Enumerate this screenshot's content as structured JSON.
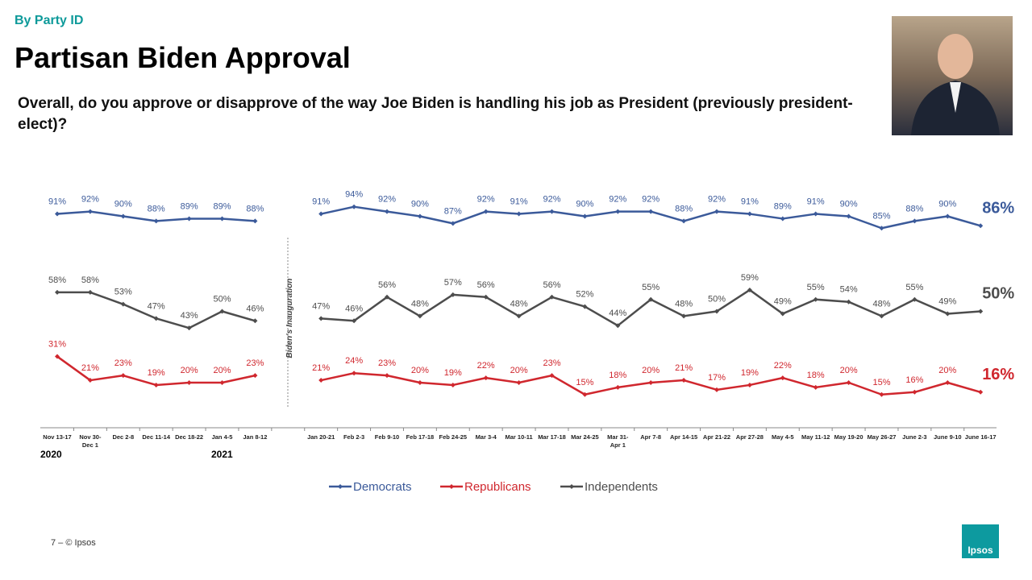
{
  "section": "By Party ID",
  "footer": "7 –  © Ipsos",
  "logo": "Ipsos",
  "chart_data": {
    "type": "line",
    "title": "Partisan Biden Approval",
    "subtitle": "Overall, do you approve or disapprove of the way Joe Biden is handling his job as President (previously president-elect)?",
    "annotation": "Biden's Inauguration",
    "year_labels": [
      "2020",
      "2021"
    ],
    "categories": [
      "Nov 13-17",
      "Nov 30-Dec 1",
      "Dec 2-8",
      "Dec 11-14",
      "Dec 18-22",
      "Jan 4-5",
      "Jan 8-12",
      null,
      "Jan 20-21",
      "Feb 2-3",
      "Feb 9-10",
      "Feb 17-18",
      "Feb 24-25",
      "Mar 3-4",
      "Mar 10-11",
      "Mar 17-18",
      "Mar 24-25",
      "Mar 31-Apr 1",
      "Apr 7-8",
      "Apr 14-15",
      "Apr 21-22",
      "Apr 27-28",
      "May 4-5",
      "May 11-12",
      "May 19-20",
      "May 26-27",
      "June 2-3",
      "June 9-10",
      "June 16-17"
    ],
    "ylim": [
      0,
      100
    ],
    "legend": "bottom",
    "series": [
      {
        "name": "Democrats",
        "color": "#3b5a9a",
        "values": [
          91,
          92,
          90,
          88,
          89,
          89,
          88,
          null,
          91,
          94,
          92,
          90,
          87,
          92,
          91,
          92,
          90,
          92,
          92,
          88,
          92,
          91,
          89,
          91,
          90,
          85,
          88,
          90,
          86
        ],
        "value_labels": [
          "91%",
          "92%",
          "90%",
          "88%",
          "89%",
          "89%",
          "88%",
          null,
          "91%",
          "94%",
          "92%",
          "90%",
          "87%",
          "92%",
          "91%",
          "92%",
          "90%",
          "92%",
          "92%",
          "88%",
          "92%",
          "91%",
          "89%",
          "91%",
          "90%",
          "85%",
          "88%",
          "90%",
          "86%"
        ]
      },
      {
        "name": "Republicans",
        "color": "#d0272e",
        "values": [
          31,
          21,
          23,
          19,
          20,
          20,
          23,
          null,
          21,
          24,
          23,
          20,
          19,
          22,
          20,
          23,
          15,
          18,
          20,
          21,
          17,
          19,
          22,
          18,
          20,
          15,
          16,
          20,
          16
        ],
        "value_labels": [
          "31%",
          "21%",
          "23%",
          "19%",
          "20%",
          "20%",
          "23%",
          null,
          "21%",
          "24%",
          "23%",
          "20%",
          "19%",
          "22%",
          "20%",
          "23%",
          "15%",
          "18%",
          "20%",
          "21%",
          "17%",
          "19%",
          "22%",
          "18%",
          "20%",
          "15%",
          "16%",
          "20%",
          "16%"
        ]
      },
      {
        "name": "Independents",
        "color": "#4d4d4d",
        "values": [
          58,
          58,
          53,
          47,
          43,
          50,
          46,
          null,
          47,
          46,
          56,
          48,
          57,
          56,
          48,
          56,
          52,
          44,
          55,
          48,
          50,
          59,
          49,
          55,
          54,
          48,
          55,
          49,
          50
        ],
        "value_labels": [
          "58%",
          "58%",
          "53%",
          "47%",
          "43%",
          "50%",
          "46%",
          null,
          "47%",
          "46%",
          "56%",
          "48%",
          "57%",
          "56%",
          "48%",
          "56%",
          "52%",
          "44%",
          "55%",
          "48%",
          "50%",
          "59%",
          "49%",
          "55%",
          "54%",
          "48%",
          "55%",
          "49%",
          "50%"
        ]
      }
    ]
  }
}
